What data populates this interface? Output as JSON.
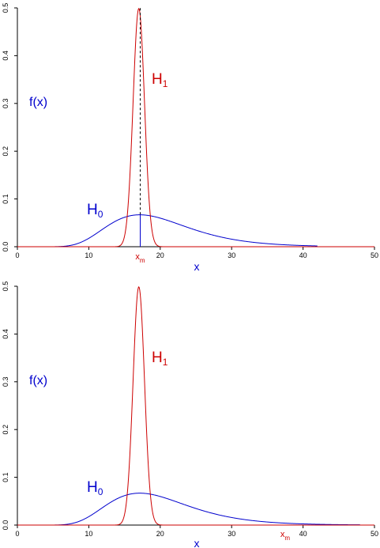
{
  "colors": {
    "h0": "#0000cd",
    "h1": "#cd0000",
    "axis": "#000000"
  },
  "chart_data": [
    {
      "type": "line",
      "panel": "top",
      "ylabel": "f(x)",
      "xlabel": "x",
      "xlim": [
        0,
        50
      ],
      "ylim": [
        0,
        0.5
      ],
      "xticks": [
        "0",
        "10",
        "20",
        "30",
        "40",
        "50"
      ],
      "yticks": [
        "0.0",
        "0.1",
        "0.2",
        "0.3",
        "0.4",
        "0.5"
      ],
      "series": [
        {
          "name": "H",
          "subscript": "0",
          "color": "#0000cd",
          "distribution": "lognormal",
          "meanlog": 2.95,
          "sdlog": 0.33,
          "xrange": [
            4,
            42
          ]
        },
        {
          "name": "H",
          "subscript": "1",
          "color": "#cd0000",
          "distribution": "normal",
          "mean": 17,
          "sd": 0.8,
          "xrange": [
            0,
            50
          ]
        }
      ],
      "marker": {
        "label": "x",
        "subscript": "m",
        "x": 17.2,
        "dashed_top": 0.5,
        "solid_top": 0.0675
      }
    },
    {
      "type": "line",
      "panel": "bottom",
      "ylabel": "f(x)",
      "xlabel": "x",
      "xlim": [
        0,
        50
      ],
      "ylim": [
        0,
        0.5
      ],
      "xticks": [
        "0",
        "10",
        "20",
        "30",
        "40",
        "50"
      ],
      "yticks": [
        "0.0",
        "0.1",
        "0.2",
        "0.3",
        "0.4",
        "0.5"
      ],
      "series": [
        {
          "name": "H",
          "subscript": "0",
          "color": "#0000cd",
          "distribution": "lognormal",
          "meanlog": 2.95,
          "sdlog": 0.33,
          "xrange": [
            4,
            48
          ]
        },
        {
          "name": "H",
          "subscript": "1",
          "color": "#cd0000",
          "distribution": "normal",
          "mean": 17,
          "sd": 0.8,
          "xrange": [
            0,
            50
          ]
        }
      ],
      "marker": {
        "label": "x",
        "subscript": "m",
        "x": 37.5
      }
    }
  ]
}
